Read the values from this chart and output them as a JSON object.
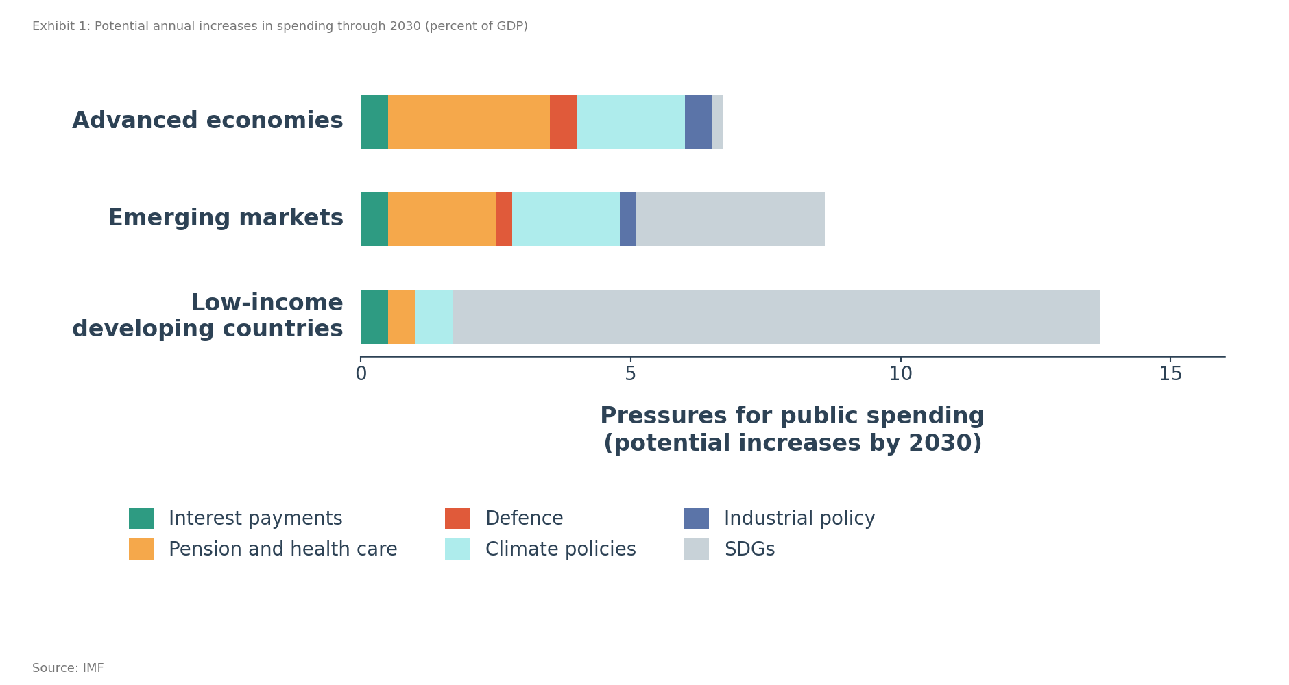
{
  "categories": [
    "Advanced economies",
    "Emerging markets",
    "Low-income\ndeveloping countries"
  ],
  "series": {
    "Interest payments": [
      0.5,
      0.5,
      0.5
    ],
    "Pension and health care": [
      3.0,
      2.0,
      0.5
    ],
    "Defence": [
      0.5,
      0.3,
      0.0
    ],
    "Climate policies": [
      2.0,
      2.0,
      0.7
    ],
    "Industrial policy": [
      0.5,
      0.3,
      0.0
    ],
    "SDGs": [
      0.2,
      3.5,
      12.0
    ]
  },
  "colors": {
    "Interest payments": "#2e9b82",
    "Pension and health care": "#f5a84b",
    "Defence": "#e05a3a",
    "Climate policies": "#aeecec",
    "Industrial policy": "#5b74a8",
    "SDGs": "#c8d2d8"
  },
  "xlim": [
    0,
    16
  ],
  "xticks": [
    0,
    5,
    10,
    15
  ],
  "xlabel_line1": "Pressures for public spending",
  "xlabel_line2": "(potential increases by 2030)",
  "title": "Exhibit 1: Potential annual increases in spending through 2030 (percent of GDP)",
  "source": "Source: IMF",
  "bg_color": "#ffffff",
  "text_color": "#2d4255",
  "bar_height": 0.55,
  "figsize": [
    18.8,
    10.0
  ],
  "legend_order": [
    "Interest payments",
    "Pension and health care",
    "Defence",
    "Climate policies",
    "Industrial policy",
    "SDGs"
  ]
}
